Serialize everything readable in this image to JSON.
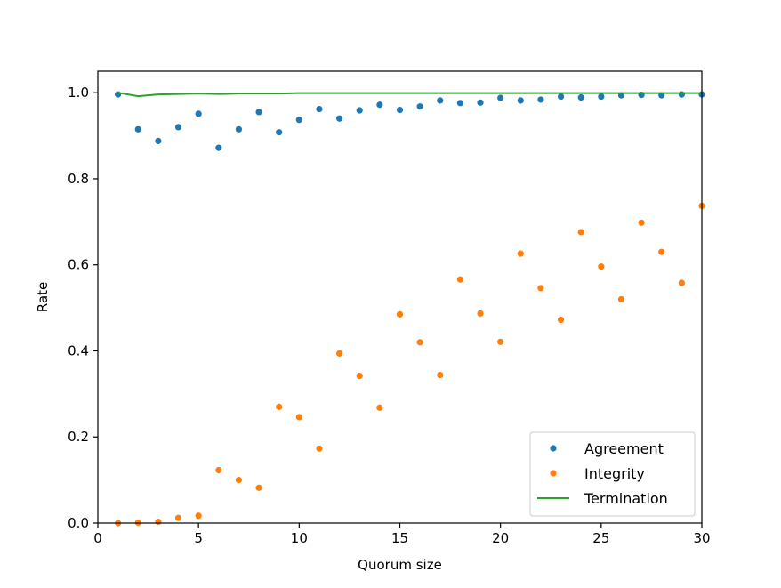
{
  "chart_data": {
    "type": "scatter",
    "title": "",
    "xlabel": "Quorum size",
    "ylabel": "Rate",
    "xlim": [
      0,
      30
    ],
    "ylim": [
      0,
      1.05
    ],
    "xticks": [
      0,
      5,
      10,
      15,
      20,
      25,
      30
    ],
    "xtick_labels": [
      "0",
      "5",
      "10",
      "15",
      "20",
      "25",
      "30"
    ],
    "yticks": [
      0.0,
      0.2,
      0.4,
      0.6,
      0.8,
      1.0
    ],
    "ytick_labels": [
      "0.0",
      "0.2",
      "0.4",
      "0.6",
      "0.8",
      "1.0"
    ],
    "grid": false,
    "legend_position": "lower-right",
    "x": [
      1,
      2,
      3,
      4,
      5,
      6,
      7,
      8,
      9,
      10,
      11,
      12,
      13,
      14,
      15,
      16,
      17,
      18,
      19,
      20,
      21,
      22,
      23,
      24,
      25,
      26,
      27,
      28,
      29,
      30
    ],
    "series": [
      {
        "name": "Agreement",
        "kind": "points",
        "color": "#1f77b4",
        "values": [
          0.996,
          0.915,
          0.888,
          0.92,
          0.951,
          0.872,
          0.915,
          0.955,
          0.908,
          0.937,
          0.962,
          0.94,
          0.959,
          0.972,
          0.96,
          0.968,
          0.982,
          0.976,
          0.977,
          0.988,
          0.982,
          0.984,
          0.991,
          0.989,
          0.991,
          0.994,
          0.995,
          0.994,
          0.996,
          0.996
        ]
      },
      {
        "name": "Integrity",
        "kind": "points",
        "color": "#ff7f0e",
        "values": [
          0.0,
          0.001,
          0.003,
          0.012,
          0.017,
          0.123,
          0.1,
          0.082,
          0.27,
          0.246,
          0.173,
          0.394,
          0.342,
          0.268,
          0.485,
          0.42,
          0.344,
          0.566,
          0.487,
          0.421,
          0.626,
          0.546,
          0.472,
          0.676,
          0.596,
          0.52,
          0.698,
          0.63,
          0.558,
          0.737
        ]
      },
      {
        "name": "Termination",
        "kind": "line",
        "color": "#2ca02c",
        "values": [
          1.0,
          0.992,
          0.996,
          0.997,
          0.998,
          0.997,
          0.998,
          0.998,
          0.998,
          0.999,
          0.999,
          0.999,
          0.999,
          0.999,
          0.999,
          0.999,
          0.999,
          0.999,
          0.999,
          0.999,
          0.999,
          0.999,
          0.999,
          0.999,
          0.999,
          0.999,
          0.999,
          0.999,
          0.999,
          0.999
        ]
      }
    ]
  }
}
